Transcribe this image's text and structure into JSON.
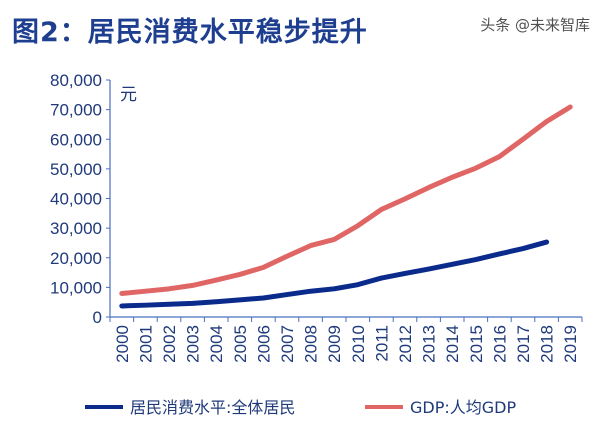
{
  "title": "图2：居民消费水平稳步提升",
  "watermark": "头条 @未来智库",
  "chart_data": {
    "type": "line",
    "title": "图2：居民消费水平稳步提升",
    "ylabel": "元",
    "ylim": [
      0,
      80000
    ],
    "yticks": [
      "0",
      "10,000",
      "20,000",
      "30,000",
      "40,000",
      "50,000",
      "60,000",
      "70,000",
      "80,000"
    ],
    "x": [
      "2000",
      "2001",
      "2002",
      "2003",
      "2004",
      "2005",
      "2006",
      "2007",
      "2008",
      "2009",
      "2010",
      "2011",
      "2012",
      "2013",
      "2014",
      "2015",
      "2016",
      "2017",
      "2018",
      "2019"
    ],
    "grid": false,
    "legend": "bottom",
    "series": [
      {
        "name": "居民消费水平:全体居民",
        "color": "#0a2b8c",
        "values": [
          3721,
          3987,
          4301,
          4606,
          5138,
          5771,
          6416,
          7572,
          8707,
          9514,
          10919,
          13134,
          14699,
          16190,
          17778,
          19397,
          21285,
          23100,
          25300,
          null
        ]
      },
      {
        "name": "GDP:人均GDP",
        "color": "#e06666",
        "values": [
          7942,
          8717,
          9506,
          10666,
          12487,
          14368,
          16738,
          20494,
          24100,
          26180,
          30808,
          36302,
          39874,
          43684,
          47173,
          50237,
          54139,
          60014,
          66006,
          70892
        ]
      }
    ]
  }
}
